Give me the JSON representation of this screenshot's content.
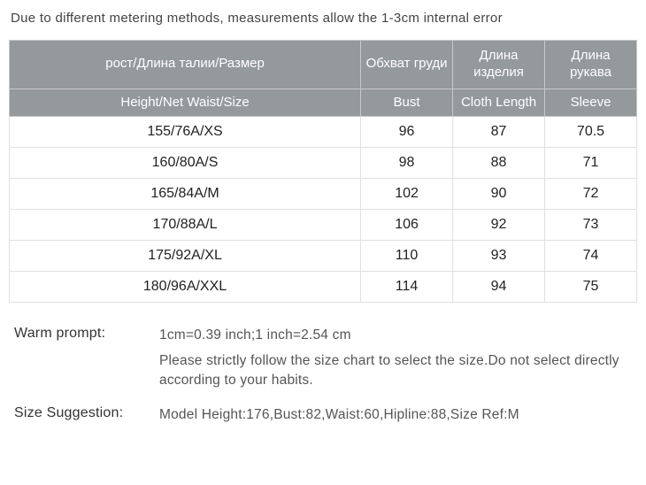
{
  "top_note": "Due to different metering methods, measurements allow the 1-3cm internal error",
  "table": {
    "header_ru": {
      "size": "рост/Длина талии/Размер",
      "bust": "Обхват груди",
      "length": "Длина изделия",
      "sleeve": "Длина рукава"
    },
    "header_en": {
      "size": "Height/Net Waist/Size",
      "bust": "Bust",
      "length": "Cloth Length",
      "sleeve": "Sleeve"
    },
    "rows": [
      {
        "size": "155/76A/XS",
        "bust": "96",
        "length": "87",
        "sleeve": "70.5"
      },
      {
        "size": "160/80A/S",
        "bust": "98",
        "length": "88",
        "sleeve": "71"
      },
      {
        "size": "165/84A/M",
        "bust": "102",
        "length": "90",
        "sleeve": "72"
      },
      {
        "size": "170/88A/L",
        "bust": "106",
        "length": "92",
        "sleeve": "73"
      },
      {
        "size": "175/92A/XL",
        "bust": "110",
        "length": "93",
        "sleeve": "74"
      },
      {
        "size": "180/96A/XXL",
        "bust": "114",
        "length": "94",
        "sleeve": "75"
      }
    ],
    "header_bg": "#94999c",
    "header_text_color": "#ffffff",
    "border_color": "#e0e0e0",
    "cell_text_color": "#222222",
    "background_color": "#ffffff"
  },
  "warm_prompt": {
    "label": "Warm prompt:",
    "line1": "1cm=0.39 inch;1 inch=2.54 cm",
    "line2": "Please strictly follow the size chart  to select the size.Do not select directly according to your habits."
  },
  "size_suggestion": {
    "label": "Size Suggestion:",
    "text": "Model Height:176,Bust:82,Waist:60,Hipline:88,Size Ref:M"
  }
}
